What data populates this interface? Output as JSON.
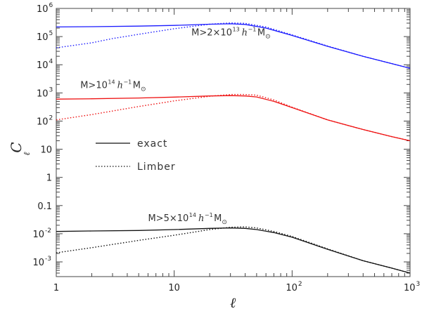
{
  "chart_data": {
    "type": "line",
    "xscale": "log",
    "yscale": "log",
    "xlim": [
      1,
      1000
    ],
    "ylim": [
      0.0003,
      1000000
    ],
    "xlabel": "ℓ",
    "ylabel": "C",
    "ylabel_sub": "ℓ",
    "x_ticks": [
      {
        "value": 1,
        "label": "1"
      },
      {
        "value": 10,
        "label": "10"
      },
      {
        "value": 100,
        "base": "10",
        "exp": "2"
      },
      {
        "value": 1000,
        "base": "10",
        "exp": "3"
      }
    ],
    "y_ticks": [
      {
        "value": 0.001,
        "base": "10",
        "exp": "-3"
      },
      {
        "value": 0.01,
        "base": "10",
        "exp": "-2"
      },
      {
        "value": 0.1,
        "label": "0.1"
      },
      {
        "value": 1,
        "label": "1"
      },
      {
        "value": 10,
        "label": "10"
      },
      {
        "value": 100,
        "base": "10",
        "exp": "2"
      },
      {
        "value": 1000,
        "base": "10",
        "exp": "3"
      },
      {
        "value": 10000,
        "base": "10",
        "exp": "4"
      },
      {
        "value": 100000,
        "base": "10",
        "exp": "5"
      },
      {
        "value": 1000000,
        "base": "10",
        "exp": "6"
      }
    ],
    "legend": {
      "placement": "center-left",
      "entries": [
        {
          "label": "exact",
          "style": "solid"
        },
        {
          "label": "Limber",
          "style": "dotted"
        }
      ]
    },
    "series": [
      {
        "group": "blue",
        "style": "solid",
        "color": "#1a1aff",
        "x": [
          1,
          2,
          5,
          10,
          20,
          30,
          40,
          60,
          100,
          200,
          400,
          700,
          1000
        ],
        "y": [
          220000,
          225000,
          235000,
          250000,
          275000,
          285000,
          270000,
          200000,
          110000,
          45000,
          20000,
          11000,
          7500
        ]
      },
      {
        "group": "blue",
        "style": "dotted",
        "color": "#1a1aff",
        "x": [
          1,
          2,
          3,
          5,
          10,
          20,
          30,
          40,
          60,
          100,
          200,
          400,
          700,
          1000
        ],
        "y": [
          40000,
          60000,
          85000,
          120000,
          190000,
          275000,
          305000,
          295000,
          220000,
          115000,
          46000,
          20000,
          11000,
          7500
        ]
      },
      {
        "group": "red",
        "style": "solid",
        "color": "#ee1111",
        "x": [
          1,
          2,
          5,
          10,
          20,
          30,
          40,
          50,
          70,
          100,
          200,
          400,
          700,
          1000
        ],
        "y": [
          600,
          620,
          660,
          710,
          780,
          800,
          780,
          720,
          500,
          300,
          110,
          50,
          28,
          20
        ]
      },
      {
        "group": "red",
        "style": "dotted",
        "color": "#ee1111",
        "x": [
          1,
          2,
          5,
          10,
          20,
          30,
          40,
          50,
          70,
          100,
          200,
          400,
          700,
          1000
        ],
        "y": [
          110,
          170,
          330,
          520,
          760,
          880,
          880,
          830,
          560,
          310,
          110,
          50,
          28,
          20
        ]
      },
      {
        "group": "black",
        "style": "solid",
        "color": "#111111",
        "x": [
          1,
          2,
          5,
          10,
          20,
          30,
          40,
          50,
          70,
          100,
          200,
          400,
          700,
          1000
        ],
        "y": [
          0.012,
          0.0125,
          0.013,
          0.014,
          0.0155,
          0.016,
          0.0155,
          0.014,
          0.011,
          0.0075,
          0.0028,
          0.0011,
          0.0006,
          0.0004
        ]
      },
      {
        "group": "black",
        "style": "dotted",
        "color": "#111111",
        "x": [
          1,
          2,
          5,
          10,
          20,
          30,
          40,
          50,
          70,
          100,
          200,
          400,
          700,
          1000
        ],
        "y": [
          0.0021,
          0.0032,
          0.0058,
          0.0088,
          0.014,
          0.017,
          0.0175,
          0.016,
          0.012,
          0.008,
          0.0029,
          0.0011,
          0.0006,
          0.0004
        ]
      }
    ],
    "annotations": [
      {
        "id": "blue",
        "x": 14,
        "y": 110000,
        "prefix": "M>2×10",
        "sup": "13",
        "h": "h",
        "hsup": "−1",
        "m": "M",
        "sun": "⊙"
      },
      {
        "id": "red",
        "x": 1.6,
        "y": 1500,
        "prefix": "M>10",
        "sup": "14",
        "h": "h",
        "hsup": "−1",
        "m": "M",
        "sun": "⊙"
      },
      {
        "id": "black",
        "x": 6,
        "y": 0.028,
        "prefix": "M>5×10",
        "sup": "14",
        "h": "h",
        "hsup": "−1",
        "m": "M",
        "sun": "⊙"
      }
    ]
  }
}
